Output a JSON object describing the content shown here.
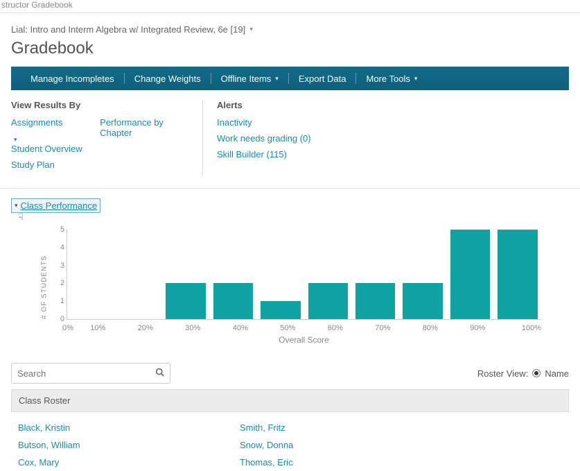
{
  "breadcrumb": "structor Gradebook",
  "course": {
    "title": "Lial: Intro and Interm Algebra w/ Integrated Review, 6e [19]"
  },
  "page_title": "Gradebook",
  "toolbar": {
    "manage": "Manage Incompletes",
    "weights": "Change Weights",
    "offline": "Offline Items",
    "export": "Export Data",
    "more": "More Tools"
  },
  "view_results": {
    "heading": "View Results By",
    "assignments": "Assignments",
    "perf_chapter": "Performance by Chapter",
    "student_overview": "Student Overview",
    "study_plan": "Study Plan"
  },
  "alerts": {
    "heading": "Alerts",
    "inactivity": "Inactivity",
    "work_needs_grading": "Work needs grading (0)",
    "skill_builder": "Skill Builder (115)"
  },
  "chart": {
    "toggle_label": "Class Performance",
    "type": "bar",
    "ylabel": "# OF STUDENTS",
    "xlabel": "Overall Score",
    "ymax": 5,
    "yticks": [
      5,
      4,
      3,
      2,
      1,
      0
    ],
    "categories": [
      "0%",
      "10%",
      "20%",
      "30%",
      "40%",
      "50%",
      "60%",
      "70%",
      "80%",
      "90%",
      "100%"
    ],
    "values": [
      0,
      0,
      0,
      2,
      2,
      1,
      2,
      2,
      2,
      5,
      5
    ],
    "bar_color": "#0fa3a3",
    "axis_color": "#cccccc",
    "text_color": "#888888",
    "background": "#ffffff"
  },
  "search": {
    "placeholder": "Search"
  },
  "roster_view": {
    "label": "Roster View:",
    "option_name": "Name"
  },
  "roster": {
    "header": "Class Roster",
    "col1": [
      "Black, Kristin",
      "Butson, William",
      "Cox, Mary"
    ],
    "col2": [
      "Smith, Fritz",
      "Snow, Donna",
      "Thomas, Eric"
    ]
  }
}
